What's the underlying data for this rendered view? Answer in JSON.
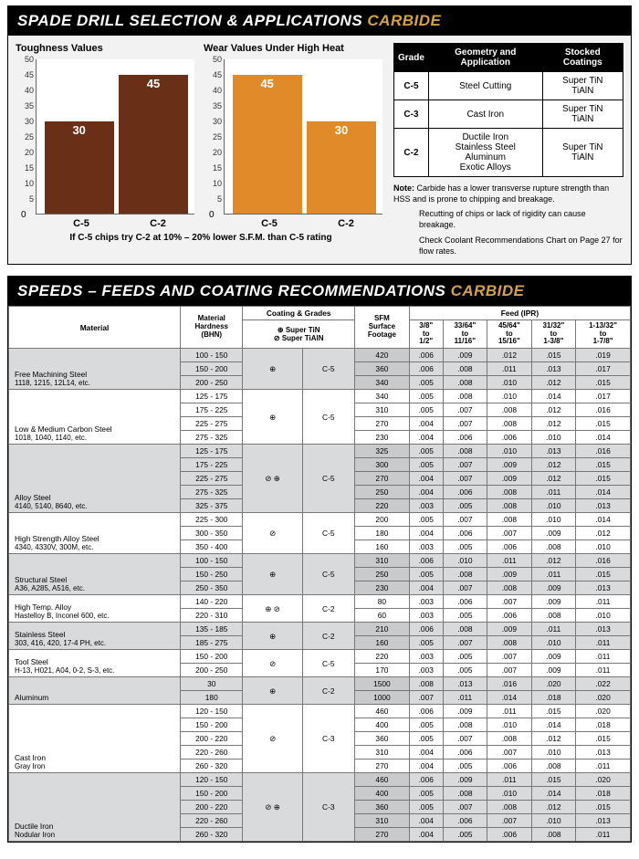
{
  "panel1": {
    "title_main": "SPADE DRILL SELECTION & APPLICATIONS ",
    "title_accent": "CARBIDE",
    "chart1": {
      "title": "Toughness Values",
      "ylim": 50,
      "yticks": [
        5,
        10,
        15,
        20,
        25,
        30,
        35,
        40,
        45,
        50
      ],
      "cats": [
        "C-5",
        "C-2"
      ],
      "vals": [
        30,
        45
      ],
      "color": "#6a2f17"
    },
    "chart2": {
      "title": "Wear Values Under High Heat",
      "ylim": 50,
      "yticks": [
        5,
        10,
        15,
        20,
        25,
        30,
        35,
        40,
        45,
        50
      ],
      "cats": [
        "C-5",
        "C-2"
      ],
      "vals": [
        45,
        30
      ],
      "color": "#e08a2a"
    },
    "footnote": "If C-5 chips try C-2 at 10% – 20% lower S.F.M. than C-5 rating",
    "gradeTable": {
      "headers": [
        "Grade",
        "Geometry and Application",
        "Stocked Coatings"
      ],
      "rows": [
        [
          "C-5",
          "Steel Cutting",
          "Super TiN\nTiAlN"
        ],
        [
          "C-3",
          "Cast Iron",
          "Super TiN\nTiAlN"
        ],
        [
          "C-2",
          "Ductile Iron\nStainless Steel\nAluminum\nExotic Alloys",
          "Super TiN\nTiAlN"
        ]
      ]
    },
    "note_label": "Note:",
    "note_lines": [
      "Carbide has a lower transverse rupture strength than HSS and is prone to chipping and breakage.",
      "Recutting of chips or lack of rigidity can cause breakage.",
      "Check Coolant Recommendations Chart on Page 27 for flow rates."
    ]
  },
  "panel2": {
    "title_main": "SPEEDS – FEEDS AND COATING RECOMMENDATIONS ",
    "title_accent": "CARBIDE",
    "headers": {
      "material": "Material",
      "hardness": "Material\nHardness\n(BHN)",
      "cg": "Coating & Grades",
      "cg_sub": "⊕ Super TiN\n⊘ Super TiAlN",
      "sfm": "SFM\nSurface\nFootage",
      "feed": "Feed (IPR)",
      "feed_cols": [
        "3/8\"\nto\n1/2\"",
        "33/64\"\nto\n11/16\"",
        "45/64\"\nto\n15/16\"",
        "31/32\"\nto\n1-3/8\"",
        "1-13/32\"\nto\n1-7/8\""
      ]
    },
    "rows": [
      {
        "mat": "Free Machining Steel",
        "sub": "1118, 1215, 12L14, etc.",
        "bhn": [
          "100 - 150",
          "150 - 200",
          "200 - 250"
        ],
        "sym": "⊕",
        "grade": "C-5",
        "sfm": [
          "420",
          "360",
          "340"
        ],
        "f": [
          [
            ".006",
            ".009",
            ".012",
            ".015",
            ".019"
          ],
          [
            ".006",
            ".008",
            ".011",
            ".013",
            ".017"
          ],
          [
            ".005",
            ".008",
            ".010",
            ".012",
            ".015"
          ]
        ],
        "alt": true
      },
      {
        "mat": "Low & Medium Carbon Steel",
        "sub": "1018, 1040, 1140, etc.",
        "bhn": [
          "125 - 175",
          "175 - 225",
          "225 - 275",
          "275 - 325"
        ],
        "sym": "⊕",
        "grade": "C-5",
        "sfm": [
          "340",
          "310",
          "270",
          "230"
        ],
        "f": [
          [
            ".005",
            ".008",
            ".010",
            ".014",
            ".017"
          ],
          [
            ".005",
            ".007",
            ".008",
            ".012",
            ".016"
          ],
          [
            ".004",
            ".007",
            ".008",
            ".012",
            ".015"
          ],
          [
            ".004",
            ".006",
            ".006",
            ".010",
            ".014"
          ]
        ],
        "alt": false
      },
      {
        "mat": "Alloy Steel",
        "sub": "4140, 5140, 8640, etc.",
        "bhn": [
          "125 - 175",
          "175 - 225",
          "225 - 275",
          "275 - 325",
          "325 - 375"
        ],
        "sym": "⊘ ⊕",
        "grade": "C-5",
        "sfm": [
          "325",
          "300",
          "270",
          "250",
          "220"
        ],
        "f": [
          [
            ".005",
            ".008",
            ".010",
            ".013",
            ".016"
          ],
          [
            ".005",
            ".007",
            ".009",
            ".012",
            ".015"
          ],
          [
            ".004",
            ".007",
            ".009",
            ".012",
            ".015"
          ],
          [
            ".004",
            ".006",
            ".008",
            ".011",
            ".014"
          ],
          [
            ".003",
            ".005",
            ".008",
            ".010",
            ".013"
          ]
        ],
        "alt": true
      },
      {
        "mat": "High Strength Alloy Steel",
        "sub": "4340, 4330V, 300M, etc.",
        "bhn": [
          "225 - 300",
          "300 - 350",
          "350 - 400"
        ],
        "sym": "⊘",
        "grade": "C-5",
        "sfm": [
          "200",
          "180",
          "160"
        ],
        "f": [
          [
            ".005",
            ".007",
            ".008",
            ".010",
            ".014"
          ],
          [
            ".004",
            ".006",
            ".007",
            ".009",
            ".012"
          ],
          [
            ".003",
            ".005",
            ".006",
            ".008",
            ".010"
          ]
        ],
        "alt": false
      },
      {
        "mat": "Structural Steel",
        "sub": "A36, A285, A516, etc.",
        "bhn": [
          "100 - 150",
          "150 - 250",
          "250 - 350"
        ],
        "sym": "⊕",
        "grade": "C-5",
        "sfm": [
          "310",
          "250",
          "230"
        ],
        "f": [
          [
            ".006",
            ".010",
            ".011",
            ".012",
            ".016"
          ],
          [
            ".005",
            ".008",
            ".009",
            ".011",
            ".015"
          ],
          [
            ".004",
            ".007",
            ".008",
            ".009",
            ".013"
          ]
        ],
        "alt": true
      },
      {
        "mat": "High Temp. Alloy",
        "sub": "Hastelloy B, Inconel 600, etc.",
        "bhn": [
          "140 - 220",
          "220 - 310"
        ],
        "sym": "⊕ ⊘",
        "grade": "C-2",
        "sfm": [
          "80",
          "60"
        ],
        "f": [
          [
            ".003",
            ".006",
            ".007",
            ".009",
            ".011"
          ],
          [
            ".003",
            ".005",
            ".006",
            ".008",
            ".010"
          ]
        ],
        "alt": false
      },
      {
        "mat": "Stainless Steel",
        "sub": "303, 416, 420, 17-4 PH, etc.",
        "bhn": [
          "135 - 185",
          "185 - 275"
        ],
        "sym": "⊕",
        "grade": "C-2",
        "sfm": [
          "210",
          "160"
        ],
        "f": [
          [
            ".006",
            ".008",
            ".009",
            ".011",
            ".013"
          ],
          [
            ".005",
            ".007",
            ".008",
            ".010",
            ".011"
          ]
        ],
        "alt": true
      },
      {
        "mat": "Tool Steel",
        "sub": "H-13, H021, A04, 0-2, S-3, etc.",
        "bhn": [
          "150 - 200",
          "200 - 250"
        ],
        "sym": "⊘",
        "grade": "C-5",
        "sfm": [
          "220",
          "170"
        ],
        "f": [
          [
            ".003",
            ".005",
            ".007",
            ".009",
            ".011"
          ],
          [
            ".003",
            ".005",
            ".007",
            ".009",
            ".011"
          ]
        ],
        "alt": false
      },
      {
        "mat": "Aluminum",
        "sub": "",
        "bhn": [
          "30",
          "180"
        ],
        "sym": "⊕",
        "grade": "C-2",
        "sfm": [
          "1500",
          "1000"
        ],
        "f": [
          [
            ".008",
            ".013",
            ".016",
            ".020",
            ".022"
          ],
          [
            ".007",
            ".011",
            ".014",
            ".018",
            ".020"
          ]
        ],
        "alt": true
      },
      {
        "mat": "Cast Iron",
        "sub": "Gray Iron",
        "bhn": [
          "120 - 150",
          "150 - 200",
          "200 - 220",
          "220 - 260",
          "260 - 320"
        ],
        "sym": "⊘",
        "grade": "C-3",
        "sfm": [
          "460",
          "400",
          "360",
          "310",
          "270"
        ],
        "f": [
          [
            ".006",
            ".009",
            ".011",
            ".015",
            ".020"
          ],
          [
            ".005",
            ".008",
            ".010",
            ".014",
            ".018"
          ],
          [
            ".005",
            ".007",
            ".008",
            ".012",
            ".015"
          ],
          [
            ".004",
            ".006",
            ".007",
            ".010",
            ".013"
          ],
          [
            ".004",
            ".005",
            ".006",
            ".008",
            ".011"
          ]
        ],
        "alt": false
      },
      {
        "mat": "Ductile Iron",
        "sub": "Nodular Iron",
        "bhn": [
          "120 - 150",
          "150 - 200",
          "200 - 220",
          "220 - 260",
          "260 - 320"
        ],
        "sym": "⊘ ⊕",
        "grade": "C-3",
        "sfm": [
          "460",
          "400",
          "360",
          "310",
          "270"
        ],
        "f": [
          [
            ".006",
            ".009",
            ".011",
            ".015",
            ".020"
          ],
          [
            ".005",
            ".008",
            ".010",
            ".014",
            ".018"
          ],
          [
            ".005",
            ".007",
            ".008",
            ".012",
            ".015"
          ],
          [
            ".004",
            ".006",
            ".007",
            ".010",
            ".013"
          ],
          [
            ".004",
            ".005",
            ".006",
            ".008",
            ".011"
          ]
        ],
        "alt": true
      }
    ]
  }
}
